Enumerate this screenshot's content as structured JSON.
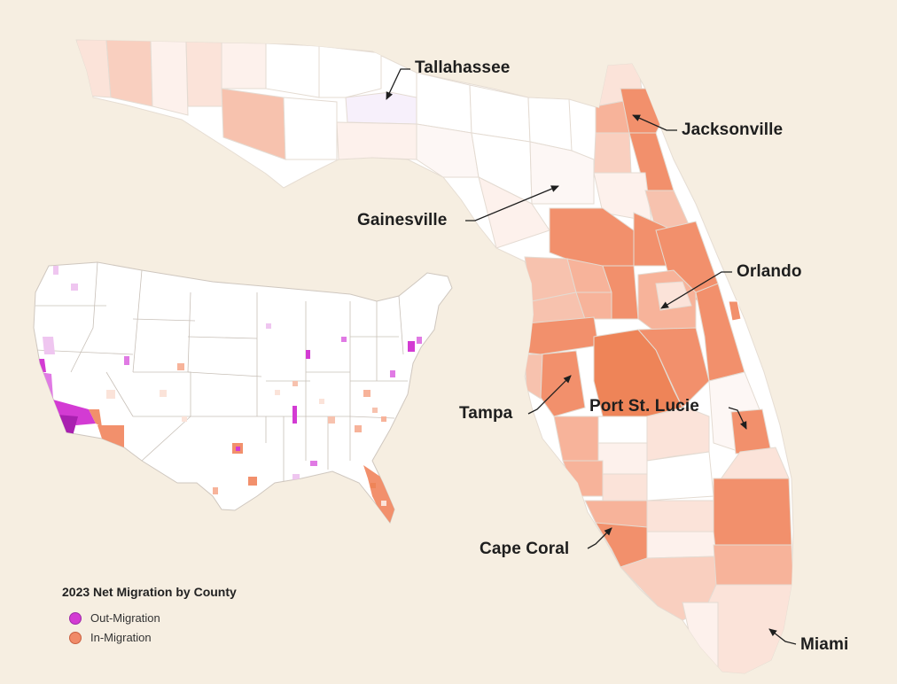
{
  "title": "2023 Net Migration by County",
  "legend": [
    {
      "label": "Out-Migration",
      "color": "#d33bd3",
      "stroke": "#9d2aa8"
    },
    {
      "label": "In-Migration",
      "color": "#f08a68",
      "stroke": "#c96040"
    }
  ],
  "cities": [
    {
      "key": "tallahassee",
      "name": "Tallahassee"
    },
    {
      "key": "jacksonville",
      "name": "Jacksonville"
    },
    {
      "key": "gainesville",
      "name": "Gainesville"
    },
    {
      "key": "orlando",
      "name": "Orlando"
    },
    {
      "key": "tampa",
      "name": "Tampa"
    },
    {
      "key": "port_st_lucie",
      "name": "Port St. Lucie"
    },
    {
      "key": "cape_coral",
      "name": "Cape Coral"
    },
    {
      "key": "miami",
      "name": "Miami"
    }
  ],
  "colors": {
    "background": "#f6eee1",
    "neutral": "#ffffff",
    "in_light": "#fbe3d9",
    "in_mid": "#f7b39a",
    "in_strong": "#f2906c",
    "in_darkest": "#ee8458",
    "out_light": "#efc6f0",
    "out_mid": "#e07ae4",
    "out_strong": "#c433c9",
    "border": "#dcd4cc"
  }
}
